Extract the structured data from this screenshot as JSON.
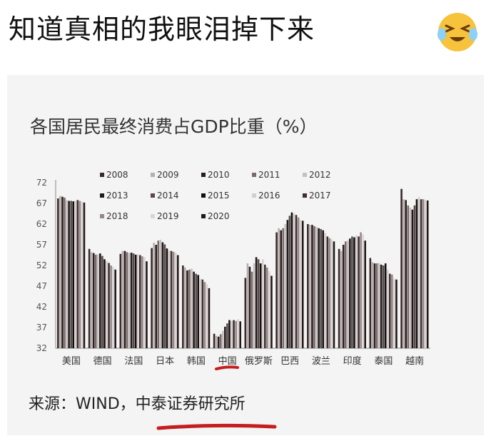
{
  "post": {
    "caption": "知道真相的我眼泪掉下来",
    "emoji_icon": "laughing-crying-face-icon"
  },
  "chart_data": {
    "type": "bar",
    "title": "各国居民最终消费占GDP比重（%）",
    "source": "来源：WIND，中泰证券研究所",
    "ylim": [
      32,
      72
    ],
    "yticks": [
      72,
      67,
      62,
      57,
      52,
      47,
      42,
      37,
      32
    ],
    "grid": false,
    "legend_position": "top-left",
    "series_names": [
      "2008",
      "2009",
      "2010",
      "2011",
      "2012",
      "2013",
      "2014",
      "2015",
      "2016",
      "2017",
      "2018",
      "2019",
      "2020"
    ],
    "series_colors": [
      "#3a2a2a",
      "#b8b0b0",
      "#2a1e1e",
      "#7a6a6a",
      "#c8c0c0",
      "#1e1a1a",
      "#5a4a4a",
      "#141010",
      "#d6cece",
      "#403030",
      "#948888",
      "#dcd4d4",
      "#221818"
    ],
    "categories": [
      "美国",
      "德国",
      "法国",
      "日本",
      "韩国",
      "中国",
      "俄罗斯",
      "巴西",
      "波兰",
      "印度",
      "泰国",
      "越南"
    ],
    "values": [
      [
        68.2,
        68.8,
        68.6,
        68.4,
        67.8,
        67.6,
        67.6,
        67.5,
        67.6,
        67.8,
        67.6,
        67.4,
        67.2
      ],
      [
        56.0,
        55.2,
        55.0,
        54.6,
        54.7,
        54.9,
        54.3,
        53.5,
        53.0,
        52.6,
        52.0,
        51.6,
        51.0
      ],
      [
        54.8,
        55.5,
        55.5,
        55.2,
        55.0,
        55.1,
        54.9,
        54.6,
        54.7,
        54.5,
        54.2,
        54.0,
        53.0
      ],
      [
        56.2,
        57.5,
        57.0,
        58.0,
        58.2,
        57.6,
        57.1,
        56.1,
        55.6,
        55.5,
        55.3,
        55.1,
        54.5
      ],
      [
        52.0,
        51.5,
        50.8,
        51.0,
        51.2,
        50.5,
        50.0,
        49.7,
        48.8,
        48.6,
        48.0,
        47.5,
        46.5
      ],
      [
        35.5,
        35.0,
        34.8,
        35.4,
        36.2,
        37.2,
        38.0,
        38.8,
        38.6,
        38.8,
        38.6,
        39.0,
        38.5
      ],
      [
        49.0,
        52.5,
        51.7,
        50.5,
        52.5,
        54.0,
        53.5,
        52.5,
        53.5,
        52.2,
        51.5,
        50.6,
        49.5
      ],
      [
        60.0,
        61.0,
        60.5,
        61.0,
        62.0,
        63.0,
        64.0,
        64.8,
        64.5,
        64.2,
        63.6,
        63.0,
        62.8
      ],
      [
        62.0,
        61.8,
        61.8,
        61.5,
        61.3,
        61.0,
        60.8,
        60.5,
        59.8,
        59.0,
        58.6,
        58.3,
        57.8
      ],
      [
        56.0,
        55.5,
        57.0,
        57.8,
        58.0,
        58.5,
        59.0,
        58.8,
        59.3,
        59.0,
        60.0,
        59.5,
        58.0
      ],
      [
        53.8,
        52.8,
        52.5,
        52.5,
        52.6,
        52.2,
        52.0,
        52.5,
        51.0,
        50.0,
        49.8,
        48.8,
        48.6
      ],
      [
        70.5,
        68.0,
        67.8,
        66.5,
        66.0,
        65.5,
        66.5,
        68.0,
        68.5,
        68.0,
        68.0,
        67.8,
        67.7
      ]
    ]
  }
}
